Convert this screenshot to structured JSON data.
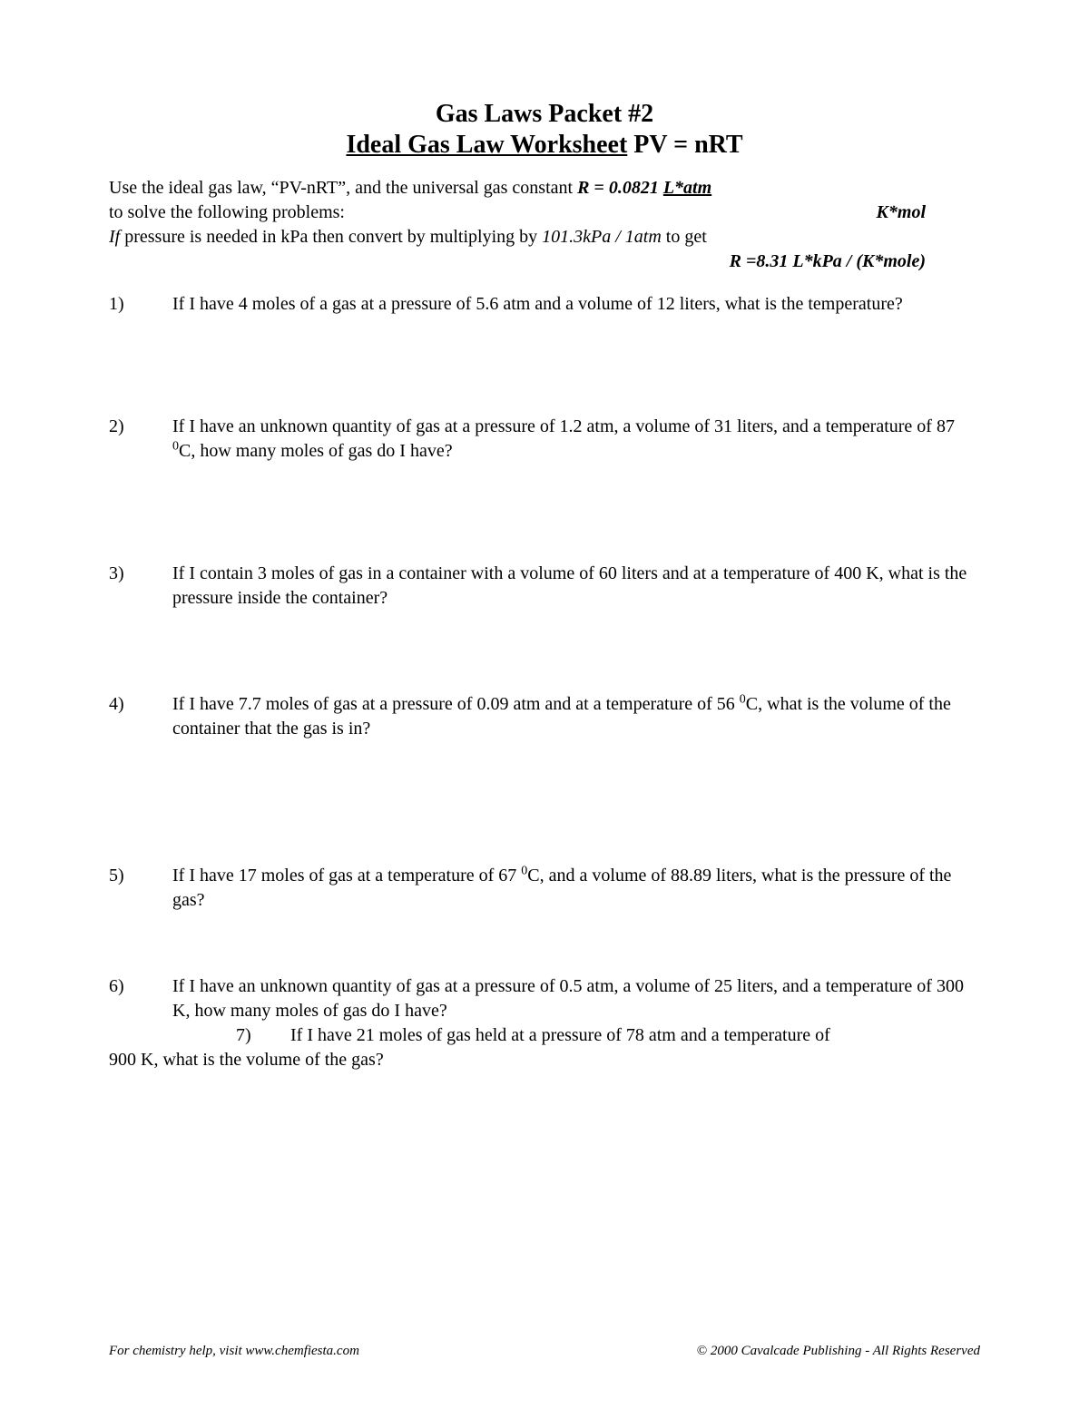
{
  "header": {
    "line1": "Gas Laws Packet #2",
    "line2_underlined": "Ideal Gas Law Worksheet",
    "line2_rest": "   PV = nRT"
  },
  "instructions": {
    "line1_a": "Use the ideal gas law, “PV-nRT”, and the universal gas constant ",
    "line1_b": "R = 0.0821 ",
    "line1_c": "L*atm",
    "line2_a": " to solve the following problems:",
    "line2_right": "K*mol",
    "line3_a": "If",
    "line3_b": " pressure is needed in kPa then convert by multiplying by ",
    "line3_c": "101.3kPa / 1atm",
    "line3_d": " to get",
    "line4": "R =8.31  L*kPa / (K*mole)"
  },
  "questions": [
    {
      "num": "1)",
      "text": "If I have 4 moles of a gas at a pressure of 5.6 atm and a volume of 12 liters, what is the temperature?"
    },
    {
      "num": "2)",
      "text_a": "If I have an unknown quantity of gas at a pressure of 1.2 atm, a volume of 31 liters, and a temperature of 87 ",
      "text_b": "C, how many moles of gas do I have?"
    },
    {
      "num": "3)",
      "text": "If I contain 3 moles of gas in a container with a volume of 60 liters and at a temperature of 400 K, what is the pressure inside the container?"
    },
    {
      "num": "4)",
      "text_a": "If I have 7.7 moles of gas at a pressure of 0.09 atm and at a temperature of 56 ",
      "text_b": "C, what is the volume of the container that the gas is in?"
    },
    {
      "num": "5)",
      "text_a": "If I have 17 moles of gas at a temperature of 67 ",
      "text_b": "C, and a volume of 88.89 liters, what is the pressure of the gas?"
    },
    {
      "num": "6)",
      "text": "If I have an unknown quantity of gas at a pressure of 0.5 atm, a volume of 25 liters, and a temperature of 300 K, how many moles of gas do I have?"
    }
  ],
  "q7": {
    "num": "7)",
    "text_a": "If I have 21 moles of gas held at a pressure of 78 atm and a temperature of",
    "text_b": "900 K, what is the volume of the gas?"
  },
  "footer": {
    "left": "For chemistry help, visit www.chemfiesta.com",
    "right": "© 2000 Cavalcade Publishing - All Rights Reserved"
  },
  "colors": {
    "background": "#ffffff",
    "text": "#000000"
  },
  "fonts": {
    "body_family": "Times New Roman",
    "body_size_pt": 15,
    "title_size_pt": 21,
    "footer_size_pt": 11
  }
}
